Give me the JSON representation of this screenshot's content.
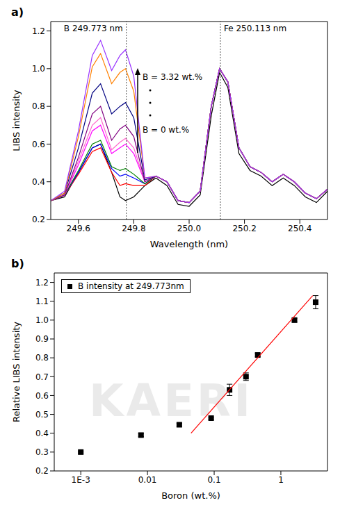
{
  "watermark": "KAERI",
  "chart_data": [
    {
      "type": "line",
      "title": "a)",
      "x_label": "Wavelength (nm)",
      "y_label": "LIBS intensity",
      "xlim": [
        249.5,
        250.5
      ],
      "xticks": [
        249.6,
        249.8,
        {
          "value": 250,
          "label": "250.0"
        },
        250.2,
        250.4
      ],
      "ylim": [
        0.2,
        1.25
      ],
      "yticks": [
        0.2,
        0.4,
        0.6,
        0.8,
        {
          "value": 1,
          "label": "1.0"
        },
        1.2
      ],
      "reference_lines": [
        {
          "x": 249.773,
          "label": "B 249.773 nm"
        },
        {
          "x": 250.113,
          "label": "Fe 250.113 nm"
        }
      ],
      "annotations": [
        "B = 3.32 wt.%",
        "B = 0 wt.%"
      ],
      "x": [
        249.5,
        249.55,
        249.6,
        249.65,
        249.68,
        249.72,
        249.75,
        249.77,
        249.8,
        249.84,
        249.88,
        249.92,
        249.96,
        250.0,
        250.04,
        250.08,
        250.11,
        250.14,
        250.18,
        250.22,
        250.26,
        250.3,
        250.34,
        250.38,
        250.42,
        250.46,
        250.5
      ],
      "series": [
        {
          "color": "#000000",
          "values": [
            0.3,
            0.32,
            0.45,
            0.58,
            0.6,
            0.45,
            0.32,
            0.3,
            0.32,
            0.38,
            0.42,
            0.38,
            0.28,
            0.27,
            0.33,
            0.75,
            0.98,
            0.9,
            0.55,
            0.46,
            0.43,
            0.38,
            0.42,
            0.38,
            0.32,
            0.29,
            0.35
          ]
        },
        {
          "color": "#ff0000",
          "values": [
            0.3,
            0.33,
            0.44,
            0.56,
            0.58,
            0.45,
            0.38,
            0.39,
            0.38,
            0.38,
            0.43,
            0.4,
            0.3,
            0.29,
            0.35,
            0.8,
            1.0,
            0.93,
            0.58,
            0.48,
            0.45,
            0.4,
            0.44,
            0.4,
            0.34,
            0.31,
            0.36
          ]
        },
        {
          "color": "#0000ff",
          "values": [
            0.3,
            0.33,
            0.45,
            0.58,
            0.6,
            0.47,
            0.43,
            0.44,
            0.42,
            0.39,
            0.43,
            0.4,
            0.3,
            0.29,
            0.35,
            0.8,
            1.0,
            0.93,
            0.58,
            0.48,
            0.45,
            0.4,
            0.44,
            0.4,
            0.34,
            0.31,
            0.36
          ]
        },
        {
          "color": "#008000",
          "values": [
            0.3,
            0.33,
            0.46,
            0.6,
            0.62,
            0.48,
            0.46,
            0.47,
            0.44,
            0.39,
            0.43,
            0.4,
            0.3,
            0.29,
            0.35,
            0.8,
            1.0,
            0.93,
            0.58,
            0.48,
            0.45,
            0.4,
            0.44,
            0.4,
            0.34,
            0.31,
            0.36
          ]
        },
        {
          "color": "#ff00ff",
          "values": [
            0.3,
            0.33,
            0.49,
            0.67,
            0.7,
            0.55,
            0.58,
            0.6,
            0.55,
            0.4,
            0.43,
            0.4,
            0.3,
            0.29,
            0.35,
            0.8,
            1.0,
            0.93,
            0.58,
            0.48,
            0.45,
            0.4,
            0.44,
            0.4,
            0.34,
            0.31,
            0.36
          ]
        },
        {
          "color": "#ff66cc",
          "values": [
            0.3,
            0.33,
            0.51,
            0.7,
            0.74,
            0.57,
            0.61,
            0.63,
            0.58,
            0.4,
            0.43,
            0.4,
            0.3,
            0.29,
            0.35,
            0.8,
            1.0,
            0.93,
            0.58,
            0.48,
            0.45,
            0.4,
            0.44,
            0.4,
            0.34,
            0.31,
            0.36
          ]
        },
        {
          "color": "#800080",
          "values": [
            0.3,
            0.33,
            0.53,
            0.76,
            0.8,
            0.62,
            0.68,
            0.7,
            0.64,
            0.4,
            0.43,
            0.4,
            0.3,
            0.29,
            0.35,
            0.8,
            1.0,
            0.93,
            0.58,
            0.48,
            0.45,
            0.4,
            0.44,
            0.4,
            0.34,
            0.31,
            0.36
          ]
        },
        {
          "color": "#000080",
          "values": [
            0.3,
            0.34,
            0.58,
            0.87,
            0.92,
            0.76,
            0.8,
            0.82,
            0.74,
            0.41,
            0.43,
            0.4,
            0.3,
            0.29,
            0.35,
            0.8,
            1.0,
            0.93,
            0.58,
            0.48,
            0.45,
            0.4,
            0.44,
            0.4,
            0.34,
            0.31,
            0.36
          ]
        },
        {
          "color": "#ff8000",
          "values": [
            0.3,
            0.34,
            0.64,
            1.01,
            1.08,
            0.92,
            0.98,
            1.0,
            0.88,
            0.42,
            0.43,
            0.4,
            0.3,
            0.29,
            0.35,
            0.8,
            1.0,
            0.93,
            0.58,
            0.48,
            0.45,
            0.4,
            0.44,
            0.4,
            0.34,
            0.31,
            0.36
          ]
        },
        {
          "color": "#9933ff",
          "values": [
            0.3,
            0.35,
            0.67,
            1.07,
            1.15,
            0.99,
            1.07,
            1.1,
            0.96,
            0.42,
            0.43,
            0.4,
            0.3,
            0.29,
            0.35,
            0.8,
            1.0,
            0.93,
            0.58,
            0.48,
            0.45,
            0.4,
            0.44,
            0.4,
            0.34,
            0.31,
            0.36
          ]
        }
      ]
    },
    {
      "type": "scatter",
      "title": "b)",
      "x_label": "Boron (wt.%)",
      "y_label": "Relative LIBS intensity",
      "log": "x",
      "legend": "upper left",
      "xlim": [
        0.0004,
        5
      ],
      "xticks": [
        {
          "value": 0.001,
          "label": "1E-3"
        },
        0.01,
        0.1,
        1
      ],
      "ylim": [
        0.2,
        1.25
      ],
      "yticks": [
        0.2,
        0.3,
        0.4,
        0.5,
        0.6,
        0.7,
        0.8,
        0.9,
        {
          "value": 1,
          "label": "1.0"
        },
        1.1,
        1.2
      ],
      "series": [
        {
          "name": "B intensity at 249.773nm",
          "type": "scatter",
          "marker": "square",
          "color": "#000000",
          "x": [
            0.001,
            0.008,
            0.03,
            0.09,
            0.17,
            0.3,
            0.45,
            1.6,
            3.32
          ],
          "values": [
            0.3,
            0.39,
            0.445,
            0.48,
            0.63,
            0.7,
            0.815,
            1.0,
            1.095
          ],
          "errors": [
            0.005,
            0.008,
            0.008,
            0.005,
            0.03,
            0.02,
            0.01,
            0.01,
            0.035
          ]
        },
        {
          "type": "line",
          "color": "#ff0000",
          "x": [
            0.045,
            3.0
          ],
          "values": [
            0.4,
            1.13
          ]
        }
      ]
    }
  ]
}
